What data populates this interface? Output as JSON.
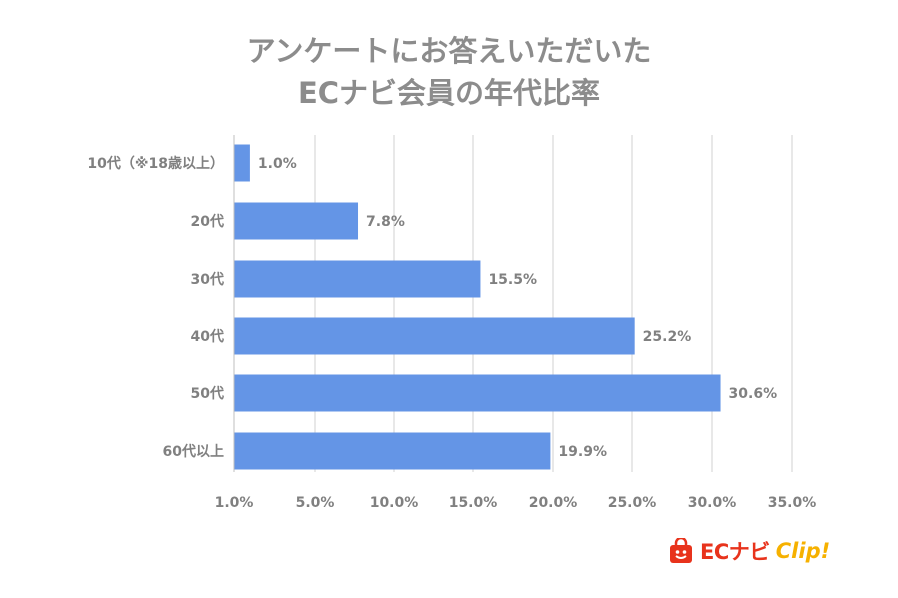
{
  "chart_data": {
    "type": "bar",
    "orientation": "horizontal",
    "title_lines": [
      "アンケートにお答えいただいた",
      "ECナビ会員の年代比率"
    ],
    "categories": [
      "10代（※18歳以上）",
      "20代",
      "30代",
      "40代",
      "50代",
      "60代以上"
    ],
    "values": [
      1.0,
      7.8,
      15.5,
      25.2,
      30.6,
      19.9
    ],
    "data_labels": [
      "1.0%",
      "7.8%",
      "15.5%",
      "25.2%",
      "30.6%",
      "19.9%"
    ],
    "x_ticks": [
      1.0,
      5.0,
      10.0,
      15.0,
      20.0,
      25.0,
      30.0,
      35.0
    ],
    "x_tick_labels": [
      "1.0%",
      "5.0%",
      "10.0%",
      "15.0%",
      "20.0%",
      "25.0%",
      "30.0%",
      "35.0%"
    ],
    "xlim": [
      0,
      35.0
    ],
    "grid": true,
    "legend": "none",
    "colors": {
      "bar": "#6495e6",
      "text": "#808080",
      "grid": "#d0d0d0",
      "title": "#8c8c8c"
    }
  },
  "logo": {
    "brand": "ECナビ",
    "suffix": "Clip!"
  }
}
